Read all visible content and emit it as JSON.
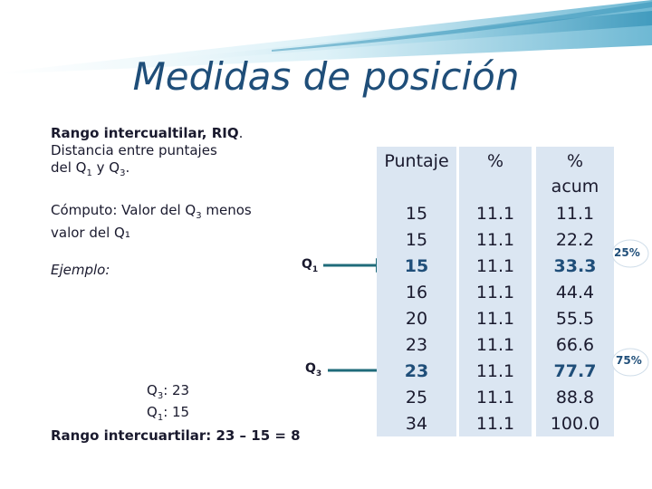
{
  "slide": {
    "title": "Medidas de posición"
  },
  "definition": {
    "heading": "Rango intercualtilar, RIQ",
    "heading_period": ".",
    "line2": "Distancia entre  puntajes",
    "line3_prefix": "del Q",
    "line3_sub1": "1",
    "line3_mid": " y Q",
    "line3_sub3": "3",
    "line3_end": "."
  },
  "computo": {
    "line1_prefix": "Cómputo: Valor del Q",
    "line1_sub": "3",
    "line1_end": " menos",
    "line2": "valor del Q₁"
  },
  "ejemplo_label": "Ejemplo:",
  "example_result": {
    "q3_prefix": "Q",
    "q3_sub": "3",
    "q3_value": ": 23",
    "q1_prefix": "Q",
    "q1_sub": "1",
    "q1_value": ": 15",
    "riq": "Rango intercuartilar: 23 – 15 = 8"
  },
  "markers": {
    "q1_label": "Q",
    "q1_sub": "1",
    "q3_label": "Q",
    "q3_sub": "3",
    "pct25": "25%",
    "pct75": "75%"
  },
  "table": {
    "headers": {
      "puntaje": "Puntaje",
      "pct": "%",
      "acum_line1": "%",
      "acum_line2": "acum"
    },
    "rows": [
      {
        "puntaje": "15",
        "pct": "11.1",
        "acum": "11.1"
      },
      {
        "puntaje": "15",
        "pct": "11.1",
        "acum": "22.2"
      },
      {
        "puntaje": "15",
        "pct": "11.1",
        "acum": "33.3"
      },
      {
        "puntaje": "16",
        "pct": "11.1",
        "acum": "44.4"
      },
      {
        "puntaje": "20",
        "pct": "11.1",
        "acum": "55.5"
      },
      {
        "puntaje": "23",
        "pct": "11.1",
        "acum": "66.6"
      },
      {
        "puntaje": "23",
        "pct": "11.1",
        "acum": "77.7"
      },
      {
        "puntaje": "25",
        "pct": "11.1",
        "acum": "88.8"
      },
      {
        "puntaje": "34",
        "pct": "11.1",
        "acum": "100.0"
      }
    ],
    "highlight_rows": [
      2,
      6
    ]
  },
  "colors": {
    "accent": "#1f4e79",
    "arrow": "#1f6b7a",
    "table_bg": "#dbe6f2",
    "header_wave_light": "#bfe3ef",
    "header_wave_dark": "#4aa7c9"
  }
}
